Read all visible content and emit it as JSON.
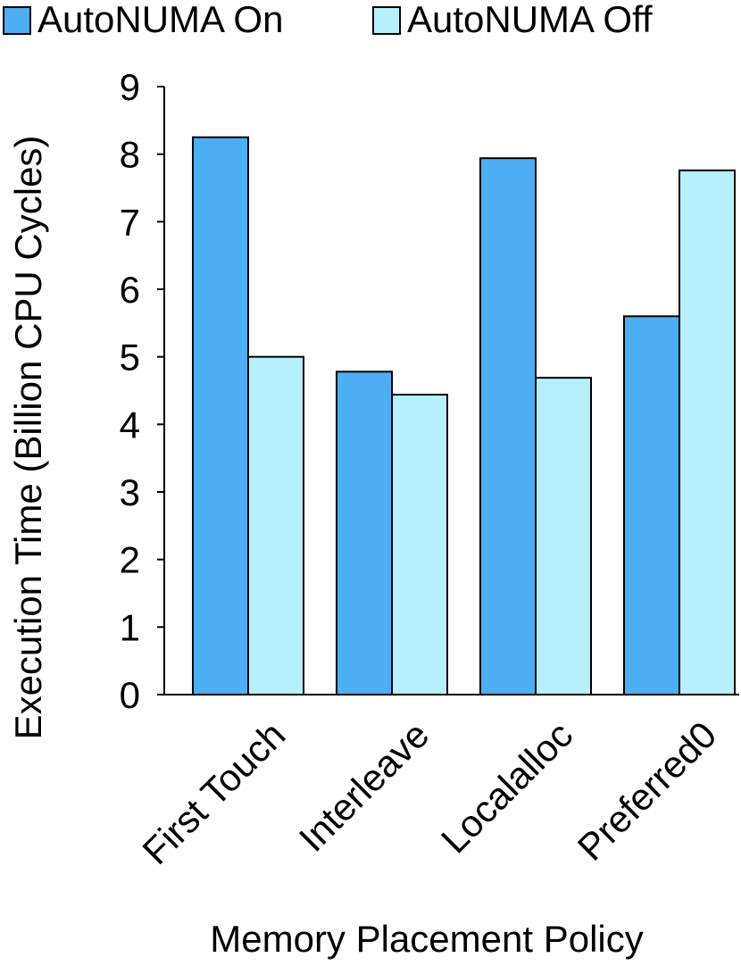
{
  "chart_data": {
    "type": "bar",
    "categories": [
      "First Touch",
      "Interleave",
      "Localalloc",
      "Preferred0"
    ],
    "series": [
      {
        "name": "AutoNUMA On",
        "values": [
          8.25,
          4.78,
          7.94,
          5.6
        ],
        "color": "#4eaef4"
      },
      {
        "name": "AutoNUMA Off",
        "values": [
          5.0,
          4.44,
          4.69,
          7.76
        ],
        "color": "#b5f0fc"
      }
    ],
    "xlabel": "Memory Placement Policy",
    "ylabel": "Execution Time (Billion CPU Cycles)",
    "ylim": [
      0,
      9
    ],
    "yticks": [
      "0",
      "1",
      "2",
      "3",
      "4",
      "5",
      "6",
      "7",
      "8",
      "9"
    ],
    "grid": false,
    "legend_position": "top"
  }
}
